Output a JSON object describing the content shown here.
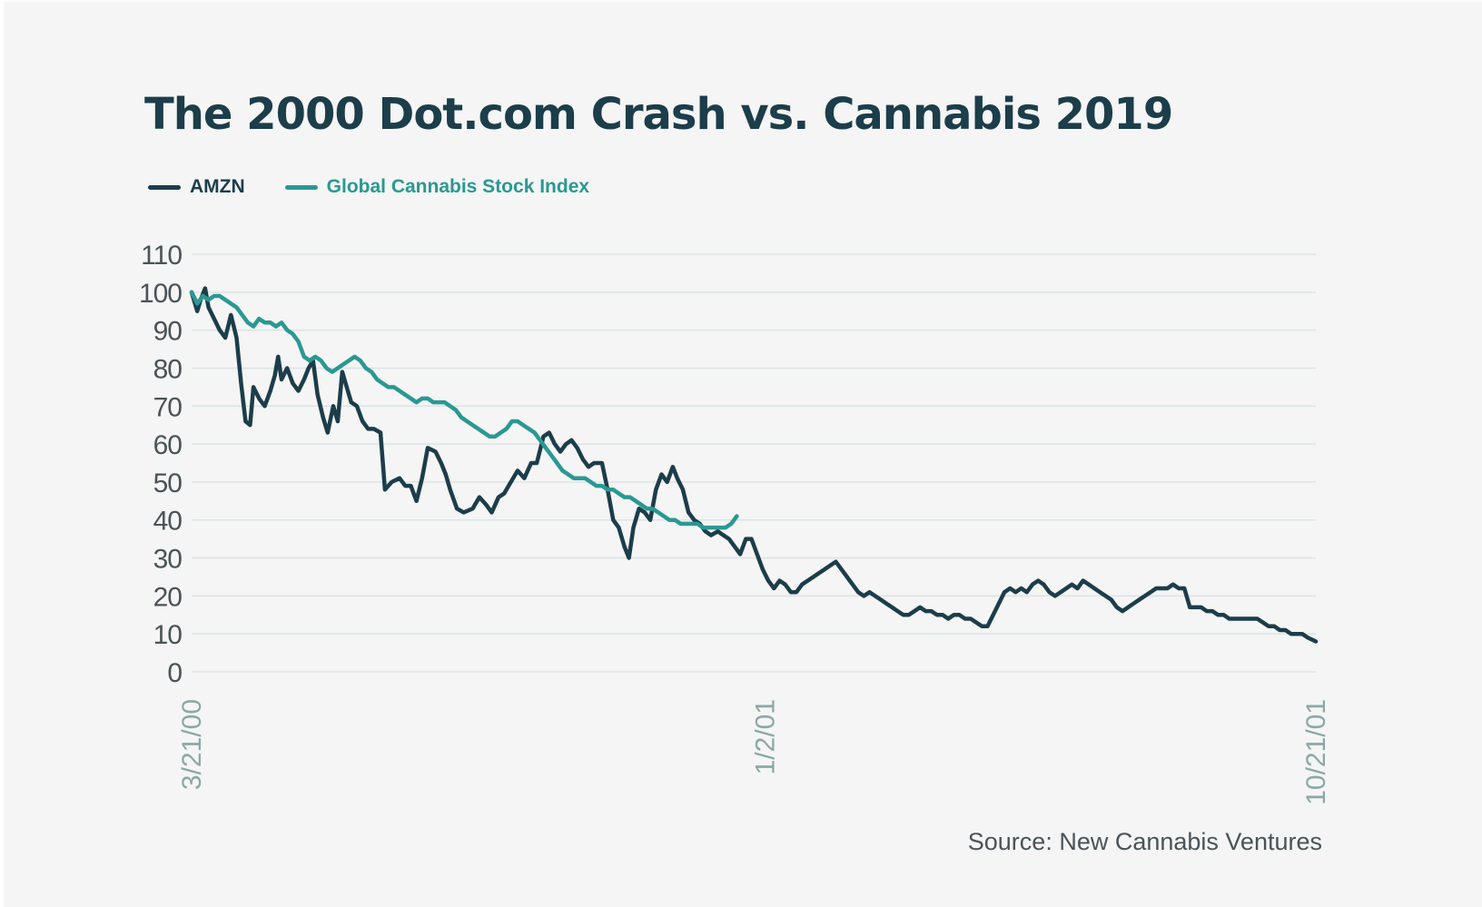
{
  "title": "The 2000 Dot.com Crash vs. Cannabis 2019",
  "source": "Source: New Cannabis Ventures",
  "colors": {
    "background": "#f4f5f4",
    "amzn": "#1c3d4a",
    "cannabis": "#2a9893",
    "grid": "#dde3e6",
    "tick": "#4a5358",
    "date_label": "#8aa8a6"
  },
  "chart_data": {
    "type": "line",
    "title": "The 2000 Dot.com Crash vs. Cannabis 2019",
    "xlabel": "",
    "ylabel": "",
    "ylim": [
      0,
      110
    ],
    "yticks": [
      0,
      10,
      20,
      30,
      40,
      50,
      60,
      70,
      80,
      90,
      100,
      110
    ],
    "x_tick_labels": [
      "3/21/00",
      "1/2/01",
      "10/21/01"
    ],
    "x_tick_positions": [
      0,
      0.51,
      1.0
    ],
    "x_range": [
      0,
      1
    ],
    "grid": true,
    "legend": "top-left",
    "series": [
      {
        "name": "AMZN",
        "color": "#1c3d4a",
        "points": [
          [
            0,
            100
          ],
          [
            0.005,
            95
          ],
          [
            0.008,
            98
          ],
          [
            0.012,
            101
          ],
          [
            0.015,
            96
          ],
          [
            0.02,
            93
          ],
          [
            0.025,
            90
          ],
          [
            0.03,
            88
          ],
          [
            0.035,
            94
          ],
          [
            0.04,
            88
          ],
          [
            0.044,
            76
          ],
          [
            0.048,
            66
          ],
          [
            0.052,
            65
          ],
          [
            0.055,
            75
          ],
          [
            0.06,
            72
          ],
          [
            0.065,
            70
          ],
          [
            0.07,
            74
          ],
          [
            0.074,
            78
          ],
          [
            0.077,
            83
          ],
          [
            0.08,
            77
          ],
          [
            0.085,
            80
          ],
          [
            0.09,
            76
          ],
          [
            0.095,
            74
          ],
          [
            0.1,
            77
          ],
          [
            0.104,
            80
          ],
          [
            0.108,
            82
          ],
          [
            0.112,
            73
          ],
          [
            0.117,
            67
          ],
          [
            0.121,
            63
          ],
          [
            0.126,
            70
          ],
          [
            0.13,
            66
          ],
          [
            0.134,
            79
          ],
          [
            0.138,
            75
          ],
          [
            0.142,
            71
          ],
          [
            0.147,
            70
          ],
          [
            0.152,
            66
          ],
          [
            0.157,
            64
          ],
          [
            0.162,
            64
          ],
          [
            0.168,
            63
          ],
          [
            0.172,
            48
          ],
          [
            0.178,
            50
          ],
          [
            0.185,
            51
          ],
          [
            0.19,
            49
          ],
          [
            0.195,
            49
          ],
          [
            0.2,
            45
          ],
          [
            0.205,
            51
          ],
          [
            0.21,
            59
          ],
          [
            0.217,
            58
          ],
          [
            0.222,
            55
          ],
          [
            0.226,
            52
          ],
          [
            0.23,
            48
          ],
          [
            0.236,
            43
          ],
          [
            0.242,
            42
          ],
          [
            0.25,
            43
          ],
          [
            0.256,
            46
          ],
          [
            0.262,
            44
          ],
          [
            0.267,
            42
          ],
          [
            0.273,
            46
          ],
          [
            0.278,
            47
          ],
          [
            0.284,
            50
          ],
          [
            0.29,
            53
          ],
          [
            0.296,
            51
          ],
          [
            0.302,
            55
          ],
          [
            0.307,
            55
          ],
          [
            0.313,
            62
          ],
          [
            0.318,
            63
          ],
          [
            0.323,
            60
          ],
          [
            0.328,
            58
          ],
          [
            0.333,
            60
          ],
          [
            0.338,
            61
          ],
          [
            0.343,
            59
          ],
          [
            0.348,
            56
          ],
          [
            0.353,
            54
          ],
          [
            0.358,
            55
          ],
          [
            0.365,
            55
          ],
          [
            0.37,
            48
          ],
          [
            0.375,
            40
          ],
          [
            0.38,
            38
          ],
          [
            0.385,
            33
          ],
          [
            0.389,
            30
          ],
          [
            0.393,
            38
          ],
          [
            0.398,
            43
          ],
          [
            0.403,
            42
          ],
          [
            0.408,
            40
          ],
          [
            0.413,
            48
          ],
          [
            0.418,
            52
          ],
          [
            0.423,
            50
          ],
          [
            0.428,
            54
          ],
          [
            0.432,
            51
          ],
          [
            0.437,
            48
          ],
          [
            0.442,
            42
          ],
          [
            0.447,
            40
          ],
          [
            0.452,
            39
          ],
          [
            0.457,
            37
          ],
          [
            0.462,
            36
          ],
          [
            0.468,
            37
          ],
          [
            0.473,
            36
          ],
          [
            0.478,
            35
          ],
          [
            0.483,
            33
          ],
          [
            0.488,
            31
          ],
          [
            0.493,
            35
          ],
          [
            0.498,
            35
          ],
          [
            0.503,
            31
          ],
          [
            0.508,
            27
          ],
          [
            0.513,
            24
          ],
          [
            0.518,
            22
          ],
          [
            0.523,
            24
          ],
          [
            0.528,
            23
          ],
          [
            0.533,
            21
          ],
          [
            0.538,
            21
          ],
          [
            0.543,
            23
          ],
          [
            0.548,
            24
          ],
          [
            0.553,
            25
          ],
          [
            0.558,
            26
          ],
          [
            0.563,
            27
          ],
          [
            0.568,
            28
          ],
          [
            0.573,
            29
          ],
          [
            0.578,
            27
          ],
          [
            0.583,
            25
          ],
          [
            0.588,
            23
          ],
          [
            0.593,
            21
          ],
          [
            0.598,
            20
          ],
          [
            0.603,
            21
          ],
          [
            0.608,
            20
          ],
          [
            0.613,
            19
          ],
          [
            0.618,
            18
          ],
          [
            0.623,
            17
          ],
          [
            0.628,
            16
          ],
          [
            0.633,
            15
          ],
          [
            0.638,
            15
          ],
          [
            0.643,
            16
          ],
          [
            0.648,
            17
          ],
          [
            0.653,
            16
          ],
          [
            0.658,
            16
          ],
          [
            0.663,
            15
          ],
          [
            0.668,
            15
          ],
          [
            0.673,
            14
          ],
          [
            0.678,
            15
          ],
          [
            0.683,
            15
          ],
          [
            0.688,
            14
          ],
          [
            0.693,
            14
          ],
          [
            0.698,
            13
          ],
          [
            0.703,
            12
          ],
          [
            0.708,
            12
          ],
          [
            0.713,
            15
          ],
          [
            0.718,
            18
          ],
          [
            0.723,
            21
          ],
          [
            0.728,
            22
          ],
          [
            0.733,
            21
          ],
          [
            0.738,
            22
          ],
          [
            0.743,
            21
          ],
          [
            0.748,
            23
          ],
          [
            0.753,
            24
          ],
          [
            0.758,
            23
          ],
          [
            0.763,
            21
          ],
          [
            0.768,
            20
          ],
          [
            0.773,
            21
          ],
          [
            0.778,
            22
          ],
          [
            0.783,
            23
          ],
          [
            0.788,
            22
          ],
          [
            0.793,
            24
          ],
          [
            0.798,
            23
          ],
          [
            0.803,
            22
          ],
          [
            0.808,
            21
          ],
          [
            0.813,
            20
          ],
          [
            0.818,
            19
          ],
          [
            0.823,
            17
          ],
          [
            0.828,
            16
          ],
          [
            0.833,
            17
          ],
          [
            0.838,
            18
          ],
          [
            0.843,
            19
          ],
          [
            0.848,
            20
          ],
          [
            0.853,
            21
          ],
          [
            0.858,
            22
          ],
          [
            0.863,
            22
          ],
          [
            0.868,
            22
          ],
          [
            0.873,
            23
          ],
          [
            0.878,
            22
          ],
          [
            0.883,
            22
          ],
          [
            0.888,
            17
          ],
          [
            0.893,
            17
          ],
          [
            0.898,
            17
          ],
          [
            0.903,
            16
          ],
          [
            0.908,
            16
          ],
          [
            0.913,
            15
          ],
          [
            0.918,
            15
          ],
          [
            0.923,
            14
          ],
          [
            0.928,
            14
          ],
          [
            0.933,
            14
          ],
          [
            0.938,
            14
          ],
          [
            0.943,
            14
          ],
          [
            0.948,
            14
          ],
          [
            0.953,
            13
          ],
          [
            0.958,
            12
          ],
          [
            0.963,
            12
          ],
          [
            0.968,
            11
          ],
          [
            0.973,
            11
          ],
          [
            0.978,
            10
          ],
          [
            0.983,
            10
          ],
          [
            0.988,
            10
          ],
          [
            0.993,
            9
          ],
          [
            1.0,
            8
          ]
        ]
      },
      {
        "name": "Global Cannabis Stock Index",
        "color": "#2a9893",
        "points": [
          [
            0,
            100
          ],
          [
            0.005,
            97
          ],
          [
            0.01,
            99
          ],
          [
            0.015,
            98
          ],
          [
            0.02,
            99
          ],
          [
            0.025,
            99
          ],
          [
            0.03,
            98
          ],
          [
            0.035,
            97
          ],
          [
            0.04,
            96
          ],
          [
            0.045,
            94
          ],
          [
            0.05,
            92
          ],
          [
            0.055,
            91
          ],
          [
            0.06,
            93
          ],
          [
            0.065,
            92
          ],
          [
            0.07,
            92
          ],
          [
            0.075,
            91
          ],
          [
            0.08,
            92
          ],
          [
            0.085,
            90
          ],
          [
            0.09,
            89
          ],
          [
            0.095,
            87
          ],
          [
            0.1,
            83
          ],
          [
            0.105,
            82
          ],
          [
            0.11,
            83
          ],
          [
            0.115,
            82
          ],
          [
            0.12,
            80
          ],
          [
            0.125,
            79
          ],
          [
            0.13,
            80
          ],
          [
            0.135,
            81
          ],
          [
            0.14,
            82
          ],
          [
            0.145,
            83
          ],
          [
            0.15,
            82
          ],
          [
            0.155,
            80
          ],
          [
            0.16,
            79
          ],
          [
            0.165,
            77
          ],
          [
            0.17,
            76
          ],
          [
            0.175,
            75
          ],
          [
            0.18,
            75
          ],
          [
            0.185,
            74
          ],
          [
            0.19,
            73
          ],
          [
            0.195,
            72
          ],
          [
            0.2,
            71
          ],
          [
            0.205,
            72
          ],
          [
            0.21,
            72
          ],
          [
            0.215,
            71
          ],
          [
            0.22,
            71
          ],
          [
            0.225,
            71
          ],
          [
            0.23,
            70
          ],
          [
            0.235,
            69
          ],
          [
            0.24,
            67
          ],
          [
            0.245,
            66
          ],
          [
            0.25,
            65
          ],
          [
            0.255,
            64
          ],
          [
            0.26,
            63
          ],
          [
            0.265,
            62
          ],
          [
            0.27,
            62
          ],
          [
            0.275,
            63
          ],
          [
            0.28,
            64
          ],
          [
            0.285,
            66
          ],
          [
            0.29,
            66
          ],
          [
            0.295,
            65
          ],
          [
            0.3,
            64
          ],
          [
            0.305,
            63
          ],
          [
            0.31,
            61
          ],
          [
            0.315,
            59
          ],
          [
            0.32,
            57
          ],
          [
            0.325,
            55
          ],
          [
            0.33,
            53
          ],
          [
            0.335,
            52
          ],
          [
            0.34,
            51
          ],
          [
            0.345,
            51
          ],
          [
            0.35,
            51
          ],
          [
            0.355,
            50
          ],
          [
            0.36,
            49
          ],
          [
            0.365,
            49
          ],
          [
            0.37,
            48
          ],
          [
            0.375,
            48
          ],
          [
            0.38,
            47
          ],
          [
            0.385,
            46
          ],
          [
            0.39,
            46
          ],
          [
            0.395,
            45
          ],
          [
            0.4,
            44
          ],
          [
            0.405,
            43
          ],
          [
            0.41,
            43
          ],
          [
            0.415,
            42
          ],
          [
            0.42,
            41
          ],
          [
            0.425,
            40
          ],
          [
            0.43,
            40
          ],
          [
            0.435,
            39
          ],
          [
            0.44,
            39
          ],
          [
            0.445,
            39
          ],
          [
            0.45,
            39
          ],
          [
            0.455,
            38
          ],
          [
            0.46,
            38
          ],
          [
            0.465,
            38
          ],
          [
            0.47,
            38
          ],
          [
            0.475,
            38
          ],
          [
            0.48,
            39
          ],
          [
            0.485,
            41
          ]
        ]
      }
    ]
  }
}
